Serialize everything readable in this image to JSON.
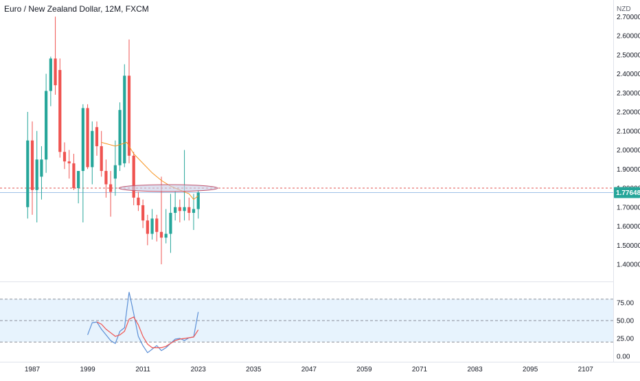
{
  "chart_data": [
    {
      "type": "candlestick",
      "title": "Euro / New Zealand Dollar, 12M, FXCM",
      "currency_label": "NZD",
      "y_ticks": [
        "1.40000",
        "1.50000",
        "1.60000",
        "1.70000",
        "1.80000",
        "1.90000",
        "2.00000",
        "2.10000",
        "2.20000",
        "2.30000",
        "2.40000",
        "2.50000",
        "2.60000",
        "2.70000"
      ],
      "ylim": [
        1.33,
        2.72
      ],
      "xlim": [
        1980,
        2113
      ],
      "last_price": 1.7765,
      "last_price_label": "1.77648",
      "resistance_level": 1.8,
      "colors": {
        "up": "#26a69a",
        "down": "#ef5350",
        "ma": "#f7931e",
        "price_line": "#9ec2e8",
        "ellipse_stroke": "#c0506b",
        "ellipse_fill": "#c7cde6"
      },
      "candles": [
        {
          "year": 1986.0,
          "open": 1.7,
          "high": 2.2,
          "low": 1.64,
          "close": 2.05
        },
        {
          "year": 1987.0,
          "open": 2.05,
          "high": 2.15,
          "low": 1.66,
          "close": 1.79
        },
        {
          "year": 1988.0,
          "open": 1.79,
          "high": 2.1,
          "low": 1.62,
          "close": 1.95
        },
        {
          "year": 1989.0,
          "open": 1.86,
          "high": 2.02,
          "low": 1.74,
          "close": 1.95
        },
        {
          "year": 1990.0,
          "open": 1.95,
          "high": 2.4,
          "low": 1.88,
          "close": 2.31
        },
        {
          "year": 1991.0,
          "open": 2.31,
          "high": 2.49,
          "low": 2.23,
          "close": 2.48
        },
        {
          "year": 1992.0,
          "open": 2.48,
          "high": 2.7,
          "low": 2.29,
          "close": 2.34
        },
        {
          "year": 1993.0,
          "open": 2.42,
          "high": 2.48,
          "low": 1.96,
          "close": 1.99
        },
        {
          "year": 1994.0,
          "open": 1.99,
          "high": 2.04,
          "low": 1.9,
          "close": 1.94
        },
        {
          "year": 1995.0,
          "open": 1.94,
          "high": 2.0,
          "low": 1.85,
          "close": 1.93
        },
        {
          "year": 1996.0,
          "open": 1.93,
          "high": 1.98,
          "low": 1.79,
          "close": 1.8
        },
        {
          "year": 1997.0,
          "open": 1.8,
          "high": 1.89,
          "low": 1.72,
          "close": 1.89
        },
        {
          "year": 1998.0,
          "open": 1.89,
          "high": 2.24,
          "low": 1.62,
          "close": 2.22
        },
        {
          "year": 1999.0,
          "open": 2.22,
          "high": 2.24,
          "low": 1.9,
          "close": 1.91
        },
        {
          "year": 2000.0,
          "open": 1.91,
          "high": 2.15,
          "low": 1.82,
          "close": 2.1
        },
        {
          "year": 2001.0,
          "open": 2.12,
          "high": 2.15,
          "low": 1.97,
          "close": 2.02
        },
        {
          "year": 2002.0,
          "open": 2.02,
          "high": 2.1,
          "low": 1.86,
          "close": 1.89
        },
        {
          "year": 2003.0,
          "open": 1.89,
          "high": 1.95,
          "low": 1.75,
          "close": 1.82
        },
        {
          "year": 2004.0,
          "open": 1.82,
          "high": 1.89,
          "low": 1.65,
          "close": 1.78
        },
        {
          "year": 2005.0,
          "open": 1.85,
          "high": 2.05,
          "low": 1.76,
          "close": 1.92
        },
        {
          "year": 2006.0,
          "open": 1.92,
          "high": 2.25,
          "low": 1.89,
          "close": 2.21
        },
        {
          "year": 2007.0,
          "open": 1.93,
          "high": 2.45,
          "low": 1.91,
          "close": 2.39
        },
        {
          "year": 2008.0,
          "open": 2.39,
          "high": 2.58,
          "low": 1.93,
          "close": 1.97
        },
        {
          "year": 2009.0,
          "open": 1.97,
          "high": 1.99,
          "low": 1.71,
          "close": 1.75
        },
        {
          "year": 2010.0,
          "open": 1.75,
          "high": 1.78,
          "low": 1.68,
          "close": 1.71
        },
        {
          "year": 2011.0,
          "open": 1.71,
          "high": 1.74,
          "low": 1.59,
          "close": 1.63
        },
        {
          "year": 2012.0,
          "open": 1.63,
          "high": 1.66,
          "low": 1.5,
          "close": 1.56
        },
        {
          "year": 2013.0,
          "open": 1.56,
          "high": 1.69,
          "low": 1.53,
          "close": 1.64
        },
        {
          "year": 2014.0,
          "open": 1.64,
          "high": 1.66,
          "low": 1.52,
          "close": 1.57
        },
        {
          "year": 2015.0,
          "open": 1.57,
          "high": 1.86,
          "low": 1.4,
          "close": 1.54
        },
        {
          "year": 2016.0,
          "open": 1.54,
          "high": 1.69,
          "low": 1.51,
          "close": 1.56
        },
        {
          "year": 2017.0,
          "open": 1.56,
          "high": 1.77,
          "low": 1.46,
          "close": 1.67
        },
        {
          "year": 2018.0,
          "open": 1.67,
          "high": 1.78,
          "low": 1.63,
          "close": 1.7
        },
        {
          "year": 2019.0,
          "open": 1.7,
          "high": 1.74,
          "low": 1.62,
          "close": 1.68
        },
        {
          "year": 2020.0,
          "open": 1.68,
          "high": 2.0,
          "low": 1.63,
          "close": 1.7
        },
        {
          "year": 2021.0,
          "open": 1.7,
          "high": 1.75,
          "low": 1.63,
          "close": 1.67
        },
        {
          "year": 2022.0,
          "open": 1.67,
          "high": 1.77,
          "low": 1.58,
          "close": 1.69
        },
        {
          "year": 2023.0,
          "open": 1.69,
          "high": 1.79,
          "low": 1.64,
          "close": 1.7765
        }
      ],
      "moving_average": [
        {
          "year": 2002.0,
          "value": 2.04
        },
        {
          "year": 2005.0,
          "value": 2.02
        },
        {
          "year": 2007.5,
          "value": 2.04
        },
        {
          "year": 2009.0,
          "value": 1.98
        },
        {
          "year": 2011.0,
          "value": 1.93
        },
        {
          "year": 2013.0,
          "value": 1.88
        },
        {
          "year": 2015.0,
          "value": 1.84
        },
        {
          "year": 2017.0,
          "value": 1.81
        },
        {
          "year": 2019.0,
          "value": 1.79
        },
        {
          "year": 2021.0,
          "value": 1.77
        },
        {
          "year": 2022.0,
          "value": 1.74
        },
        {
          "year": 2023.0,
          "value": 1.76
        }
      ]
    },
    {
      "type": "line",
      "y_ticks": [
        "0.00",
        "25.00",
        "50.00",
        "75.00"
      ],
      "ylim": [
        0,
        100
      ],
      "band": [
        20,
        80
      ],
      "midline": 50,
      "colors": {
        "rsi": "#5b8fd6",
        "signal": "#ef5350",
        "band_fill": "#e7f3fd",
        "dash": "#8a8e99"
      },
      "series": [
        {
          "points": [
            [
              1999,
              30
            ],
            [
              2000,
              47
            ],
            [
              2001,
              48
            ],
            [
              2002,
              38
            ],
            [
              2003,
              30
            ],
            [
              2004,
              22
            ],
            [
              2005,
              18
            ],
            [
              2006,
              35
            ],
            [
              2007,
              40
            ],
            [
              2008,
              90
            ],
            [
              2009,
              60
            ],
            [
              2010,
              28
            ],
            [
              2011,
              15
            ],
            [
              2012,
              5
            ],
            [
              2013,
              10
            ],
            [
              2014,
              15
            ],
            [
              2015,
              8
            ],
            [
              2016,
              12
            ],
            [
              2017,
              18
            ],
            [
              2018,
              24
            ],
            [
              2019,
              25
            ],
            [
              2020,
              22
            ],
            [
              2021,
              26
            ],
            [
              2022,
              27
            ],
            [
              2023,
              62
            ]
          ]
        },
        {
          "points": [
            [
              2001,
              48
            ],
            [
              2002,
              45
            ],
            [
              2003,
              38
            ],
            [
              2004,
              33
            ],
            [
              2005,
              28
            ],
            [
              2006,
              30
            ],
            [
              2007,
              35
            ],
            [
              2008,
              52
            ],
            [
              2009,
              55
            ],
            [
              2010,
              44
            ],
            [
              2011,
              28
            ],
            [
              2012,
              17
            ],
            [
              2013,
              12
            ],
            [
              2014,
              12
            ],
            [
              2015,
              12
            ],
            [
              2016,
              14
            ],
            [
              2017,
              18
            ],
            [
              2018,
              22
            ],
            [
              2019,
              24
            ],
            [
              2020,
              25
            ],
            [
              2021,
              26
            ],
            [
              2022,
              27
            ],
            [
              2023,
              37
            ]
          ]
        }
      ]
    }
  ],
  "x_axis": {
    "tick_labels": [
      "1987",
      "1999",
      "2011",
      "2023",
      "2035",
      "2047",
      "2059",
      "2071",
      "2083",
      "2095",
      "2107"
    ],
    "tick_values": [
      1987,
      1999,
      2011,
      2023,
      2035,
      2047,
      2059,
      2071,
      2083,
      2095,
      2107
    ]
  }
}
